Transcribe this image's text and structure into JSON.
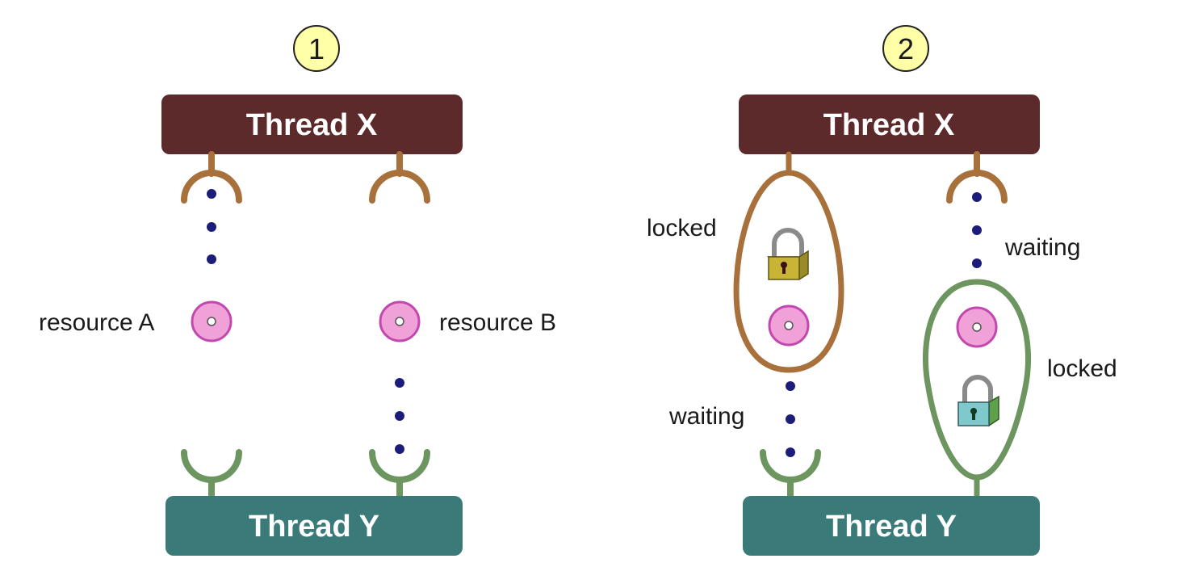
{
  "colors": {
    "thread_x": "#5c2a2a",
    "thread_y": "#3a7a78",
    "x_stroke": "#a8703a",
    "y_stroke": "#6d9560",
    "dot": "#1c1c7a",
    "resource_fill": "#f0a2d8",
    "resource_stroke": "#c248b0",
    "step_badge": "#ffffa8",
    "lock_gold": "#c9b436",
    "lock_teal": "#7fc8cc",
    "lock_green": "#5fa04a"
  },
  "panels": [
    {
      "step": "1",
      "thread_x": "Thread X",
      "thread_y": "Thread Y",
      "labels": {
        "resource_a": "resource A",
        "resource_b": "resource B"
      }
    },
    {
      "step": "2",
      "thread_x": "Thread X",
      "thread_y": "Thread Y",
      "labels": {
        "locked_left": "locked",
        "waiting_left": "waiting",
        "waiting_right": "waiting",
        "locked_right": "locked"
      }
    }
  ]
}
